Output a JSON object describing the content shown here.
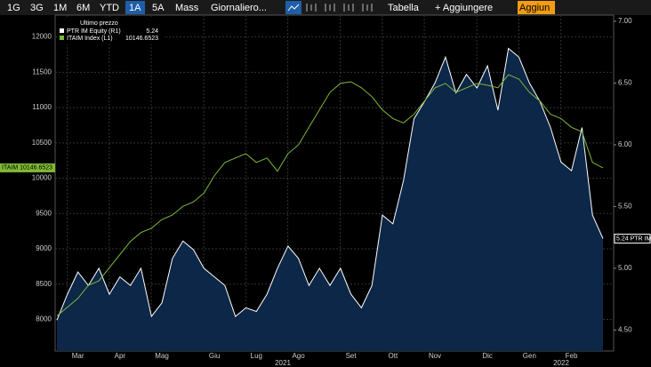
{
  "toolbar": {
    "ranges": [
      "1G",
      "3G",
      "1M",
      "6M",
      "YTD",
      "1A",
      "5A",
      "Mass"
    ],
    "active": "1A",
    "period": "Giornaliero...",
    "table": "Tabella",
    "add": "+ Aggiungere",
    "add_short": "Aggiun"
  },
  "chart_data": {
    "type": "line",
    "legend_title": "Ultimo prezzo",
    "categories": [
      null,
      null,
      "Mar",
      null,
      null,
      null,
      "Apr",
      null,
      null,
      null,
      "Mag",
      null,
      null,
      null,
      null,
      "Giu",
      null,
      null,
      null,
      "Lug",
      null,
      null,
      null,
      "Ago",
      null,
      null,
      null,
      null,
      "Set",
      null,
      null,
      null,
      "Ott",
      null,
      null,
      null,
      "Nov",
      null,
      null,
      null,
      null,
      "Dic",
      null,
      null,
      null,
      "Gen",
      null,
      null,
      null,
      "Feb",
      null,
      null,
      null
    ],
    "year_labels": [
      "2021",
      "2022"
    ],
    "tags": [
      "ITAIM 10146.6523",
      "5.24 PTR IM"
    ],
    "ylim": [
      7553,
      12310
    ],
    "yticks": [
      8000,
      8500,
      9000,
      9500,
      10000,
      10500,
      11000,
      11500,
      12000
    ],
    "y2lim": [
      4.33,
      7.05
    ],
    "y2ticks": [
      {
        "value": 4.5,
        "label": "4.50"
      },
      {
        "value": 5,
        "label": "5.00"
      },
      {
        "value": 5.5,
        "label": "5.50"
      },
      {
        "value": 6,
        "label": "6.00"
      },
      {
        "value": 6.5,
        "label": "6.50"
      },
      {
        "value": 7,
        "label": "7.00"
      }
    ],
    "grid": true,
    "series": [
      {
        "name": "PTR IM Equity (R1)",
        "color": "#ffffff",
        "fill": "#0c2748",
        "style": "area",
        "axis": "y2",
        "values": [
          4.58,
          4.79,
          4.97,
          4.86,
          5.0,
          4.79,
          4.93,
          4.86,
          5.0,
          4.61,
          4.72,
          5.08,
          5.22,
          5.15,
          5.0,
          4.93,
          4.86,
          4.61,
          4.68,
          4.65,
          4.79,
          5.0,
          5.18,
          5.08,
          4.86,
          5.0,
          4.86,
          5.0,
          4.79,
          4.68,
          4.86,
          5.43,
          5.36,
          5.71,
          6.21,
          6.35,
          6.5,
          6.71,
          6.42,
          6.57,
          6.46,
          6.64,
          6.28,
          6.78,
          6.71,
          6.5,
          6.35,
          6.14,
          5.86,
          5.79,
          6.14,
          5.43,
          5.24
        ]
      },
      {
        "name": "ITAIM Index (L1)",
        "color": "#7fb935",
        "style": "line",
        "values": [
          8050,
          8174,
          8298,
          8484,
          8546,
          8733,
          8919,
          9106,
          9230,
          9292,
          9416,
          9478,
          9602,
          9665,
          9789,
          10037,
          10224,
          10286,
          10348,
          10224,
          10286,
          10099,
          10348,
          10472,
          10720,
          10969,
          11217,
          11342,
          11366,
          11280,
          11155,
          10969,
          10845,
          10783,
          10907,
          11093,
          11280,
          11342,
          11217,
          11280,
          11342,
          11317,
          11280,
          11466,
          11404,
          11217,
          11093,
          10907,
          10845,
          10720,
          10658,
          10224,
          10146.6523
        ]
      }
    ]
  }
}
